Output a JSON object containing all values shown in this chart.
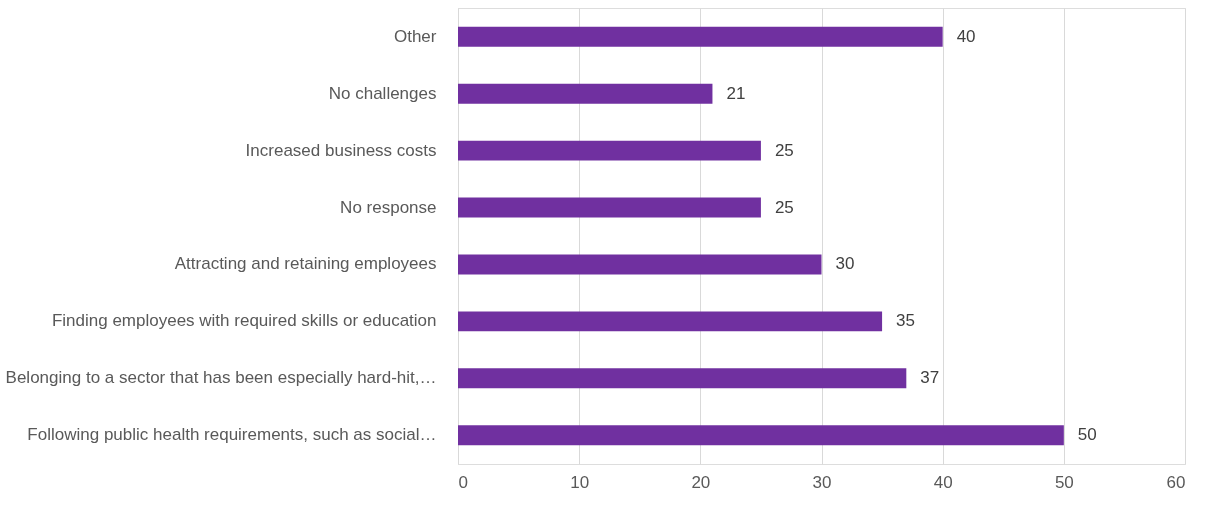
{
  "chart_data": {
    "type": "bar",
    "orientation": "horizontal",
    "categories": [
      "Other",
      "No challenges",
      "Increased business costs",
      "No response",
      "Attracting and retaining employees",
      "Finding employees with required skills or education",
      "Belonging to a sector that has been especially hard-hit,…",
      "Following public health requirements, such as social…"
    ],
    "values": [
      40,
      21,
      25,
      25,
      30,
      35,
      37,
      50
    ],
    "color": "#7030a0",
    "xlim": [
      0,
      60
    ],
    "xticks": [
      0,
      10,
      20,
      30,
      40,
      50,
      60
    ],
    "grid": "x",
    "data_labels": true
  }
}
